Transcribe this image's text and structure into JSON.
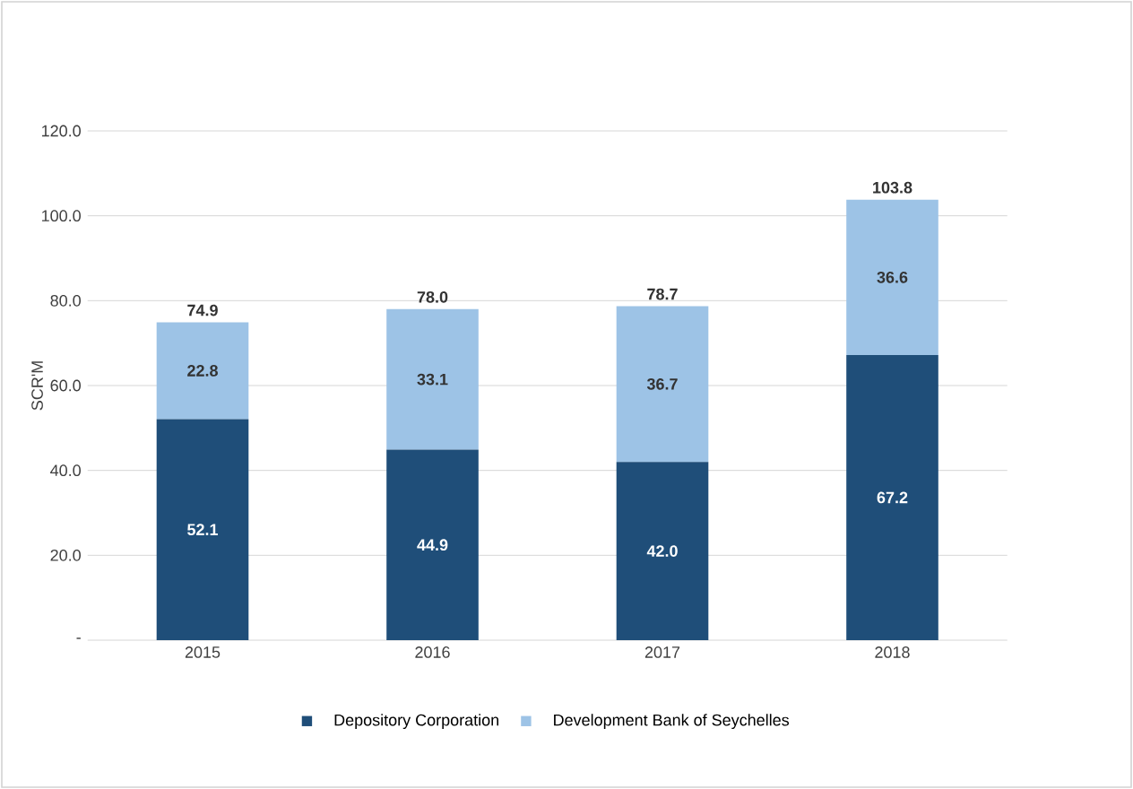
{
  "chart_data": {
    "type": "bar",
    "stacked": true,
    "ylabel": "SCR'M",
    "categories": [
      "2015",
      "2016",
      "2017",
      "2018"
    ],
    "series": [
      {
        "name": "Depository Corporation",
        "color": "#1f4e79",
        "values": [
          52.1,
          44.9,
          42.0,
          67.2
        ],
        "value_labels": [
          "52.1",
          "44.9",
          "42.0",
          "67.2"
        ]
      },
      {
        "name": "Development Bank of Seychelles",
        "color": "#9dc3e6",
        "values": [
          22.8,
          33.1,
          36.7,
          36.6
        ],
        "value_labels": [
          "22.8",
          "33.1",
          "36.7",
          "36.6"
        ]
      }
    ],
    "totals": [
      "74.9",
      "78.0",
      "78.7",
      "103.8"
    ],
    "ylim": [
      0,
      120
    ],
    "yticks": [
      {
        "value": 0,
        "label": "-"
      },
      {
        "value": 20,
        "label": "20.0"
      },
      {
        "value": 40,
        "label": "40.0"
      },
      {
        "value": 60,
        "label": "60.0"
      },
      {
        "value": 80,
        "label": "80.0"
      },
      {
        "value": 100,
        "label": "100.0"
      },
      {
        "value": 120,
        "label": "120.0"
      }
    ],
    "grid": "y",
    "legend": "bottom"
  }
}
